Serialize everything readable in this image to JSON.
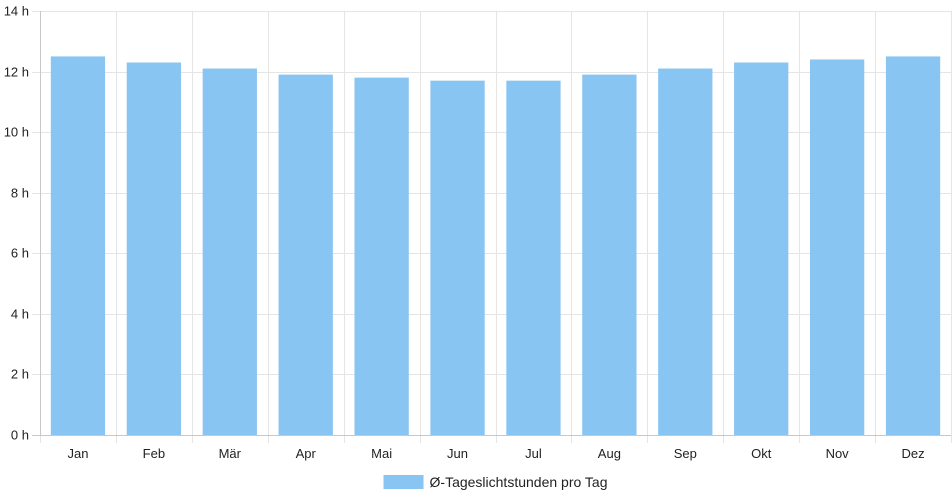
{
  "chart_data": {
    "type": "bar",
    "categories": [
      "Jan",
      "Feb",
      "Mär",
      "Apr",
      "Mai",
      "Jun",
      "Jul",
      "Aug",
      "Sep",
      "Okt",
      "Nov",
      "Dez"
    ],
    "series": [
      {
        "name": "Ø-Tageslichtstunden pro Tag",
        "values": [
          12.5,
          12.3,
          12.1,
          11.9,
          11.8,
          11.7,
          11.7,
          11.9,
          12.1,
          12.3,
          12.4,
          12.5
        ]
      }
    ],
    "ylim": [
      0,
      14
    ],
    "yticks": [
      0,
      2,
      4,
      6,
      8,
      10,
      12,
      14
    ],
    "ytick_suffix": " h",
    "grid": true,
    "legend_position": "bottom",
    "colors": {
      "bar": "#88C5F2",
      "grid": "#e5e5e5",
      "axis": "#c8c8c8",
      "text": "#222222"
    }
  }
}
